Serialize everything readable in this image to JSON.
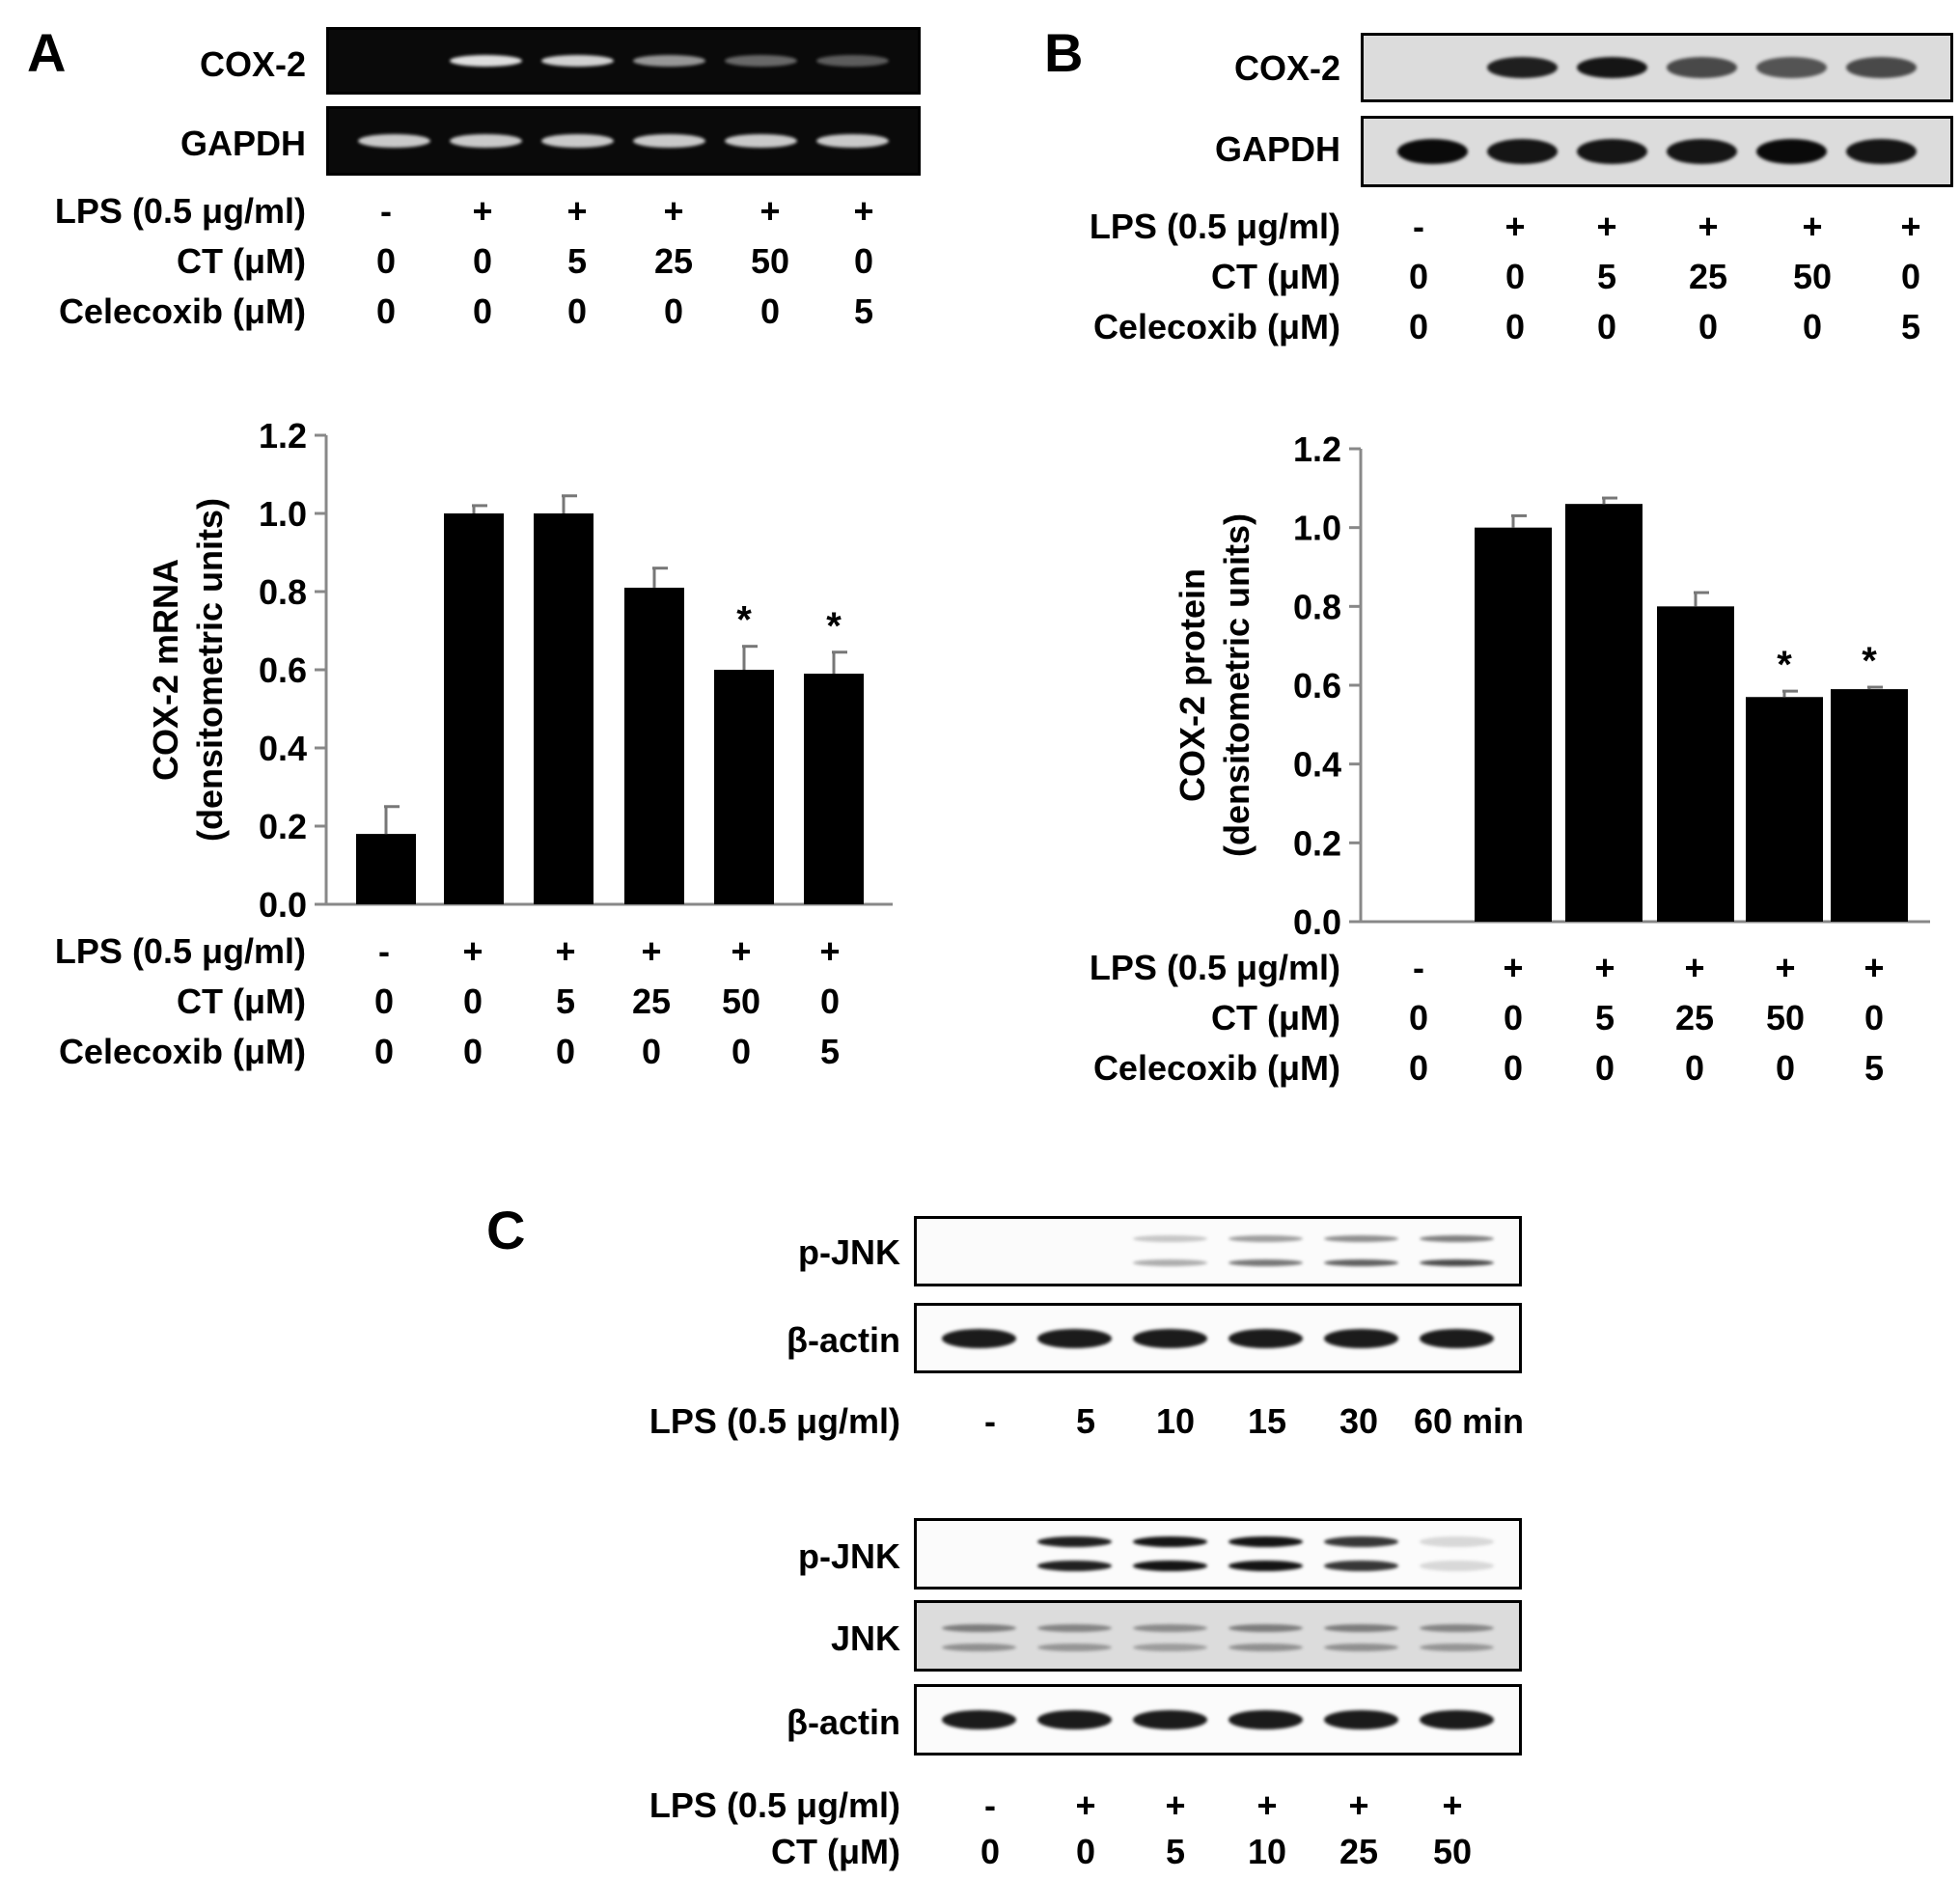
{
  "panel_a": {
    "letter": "A",
    "blot_labels": [
      "COX-2",
      "GAPDH"
    ],
    "conditions": {
      "lps_label": "LPS (0.5 μg/ml)",
      "ct_label": "CT (μM)",
      "celecoxib_label": "Celecoxib (μM)",
      "lps": [
        "-",
        "+",
        "+",
        "+",
        "+",
        "+"
      ],
      "ct": [
        "0",
        "0",
        "5",
        "25",
        "50",
        "0"
      ],
      "celecoxib": [
        "0",
        "0",
        "0",
        "0",
        "0",
        "5"
      ]
    },
    "cox2_band_intensity": [
      0,
      0.9,
      0.85,
      0.6,
      0.4,
      0.35
    ],
    "gapdh_band_intensity": [
      0.85,
      0.85,
      0.85,
      0.85,
      0.85,
      0.85
    ]
  },
  "panel_b": {
    "letter": "B",
    "blot_labels": [
      "COX-2",
      "GAPDH"
    ],
    "conditions": {
      "lps_label": "LPS (0.5 μg/ml)",
      "ct_label": "CT (μM)",
      "celecoxib_label": "Celecoxib (μM)",
      "lps": [
        "-",
        "+",
        "+",
        "+",
        "+",
        "+"
      ],
      "ct": [
        "0",
        "0",
        "5",
        "25",
        "50",
        "0"
      ],
      "celecoxib": [
        "0",
        "0",
        "0",
        "0",
        "0",
        "5"
      ]
    },
    "cox2_band_intensity": [
      0,
      0.9,
      0.95,
      0.7,
      0.65,
      0.7
    ],
    "gapdh_band_intensity": [
      1,
      0.95,
      0.95,
      0.95,
      1,
      0.95
    ]
  },
  "panel_c": {
    "letter": "C",
    "top_blot_labels": [
      "p-JNK",
      "β-actin"
    ],
    "time_label": "LPS (0.5 μg/ml)",
    "time_points": [
      "-",
      "5",
      "10",
      "15",
      "30",
      "60 min"
    ],
    "pjnk_time_intensity": [
      0,
      0,
      0.35,
      0.6,
      0.7,
      0.8
    ],
    "actin_time_intensity": [
      0.95,
      0.95,
      0.95,
      0.95,
      0.95,
      0.95
    ],
    "bottom_blot_labels": [
      "p-JNK",
      "JNK",
      "β-actin"
    ],
    "lps_label": "LPS (0.5 μg/ml)",
    "ct_label": "CT (μM)",
    "lps": [
      "-",
      "+",
      "+",
      "+",
      "+",
      "+"
    ],
    "ct": [
      "0",
      "0",
      "5",
      "10",
      "25",
      "50"
    ],
    "pjnk_ct_intensity": [
      0,
      0.95,
      1,
      1,
      0.85,
      0.15
    ],
    "jnk_intensity": [
      0.6,
      0.55,
      0.5,
      0.6,
      0.6,
      0.55
    ],
    "actin_ct_intensity": [
      0.95,
      0.95,
      0.95,
      0.95,
      0.95,
      0.95
    ]
  },
  "chart_data": [
    {
      "type": "bar",
      "categories": [
        "-/0/0",
        "+/0/0",
        "+/5/0",
        "+/25/0",
        "+/50/0",
        "+/0/5"
      ],
      "values": [
        0.18,
        1.0,
        1.0,
        0.81,
        0.6,
        0.59
      ],
      "errors": [
        0.07,
        0.02,
        0.045,
        0.05,
        0.06,
        0.055
      ],
      "significance": [
        "",
        "",
        "",
        "",
        "*",
        "*"
      ],
      "ylabel": [
        "COX-2 mRNA",
        "(densitometric units)"
      ],
      "ylim": [
        0,
        1.2
      ],
      "yticks": [
        "0.0",
        "0.2",
        "0.4",
        "0.6",
        "0.8",
        "1.0",
        "1.2"
      ],
      "grid": false,
      "color": "#000000"
    },
    {
      "type": "bar",
      "categories": [
        "-/0/0",
        "+/0/0",
        "+/5/0",
        "+/25/0",
        "+/50/0",
        "+/0/5"
      ],
      "values": [
        0.0,
        1.0,
        1.06,
        0.8,
        0.57,
        0.59
      ],
      "errors": [
        0,
        0.03,
        0.015,
        0.035,
        0.015,
        0.005
      ],
      "significance": [
        "",
        "",
        "",
        "",
        "*",
        "*"
      ],
      "ylabel": [
        "COX-2 protein",
        "(densitometric units)"
      ],
      "ylim": [
        0,
        1.2
      ],
      "yticks": [
        "0.0",
        "0.2",
        "0.4",
        "0.6",
        "0.8",
        "1.0",
        "1.2"
      ],
      "grid": false,
      "color": "#000000"
    }
  ]
}
